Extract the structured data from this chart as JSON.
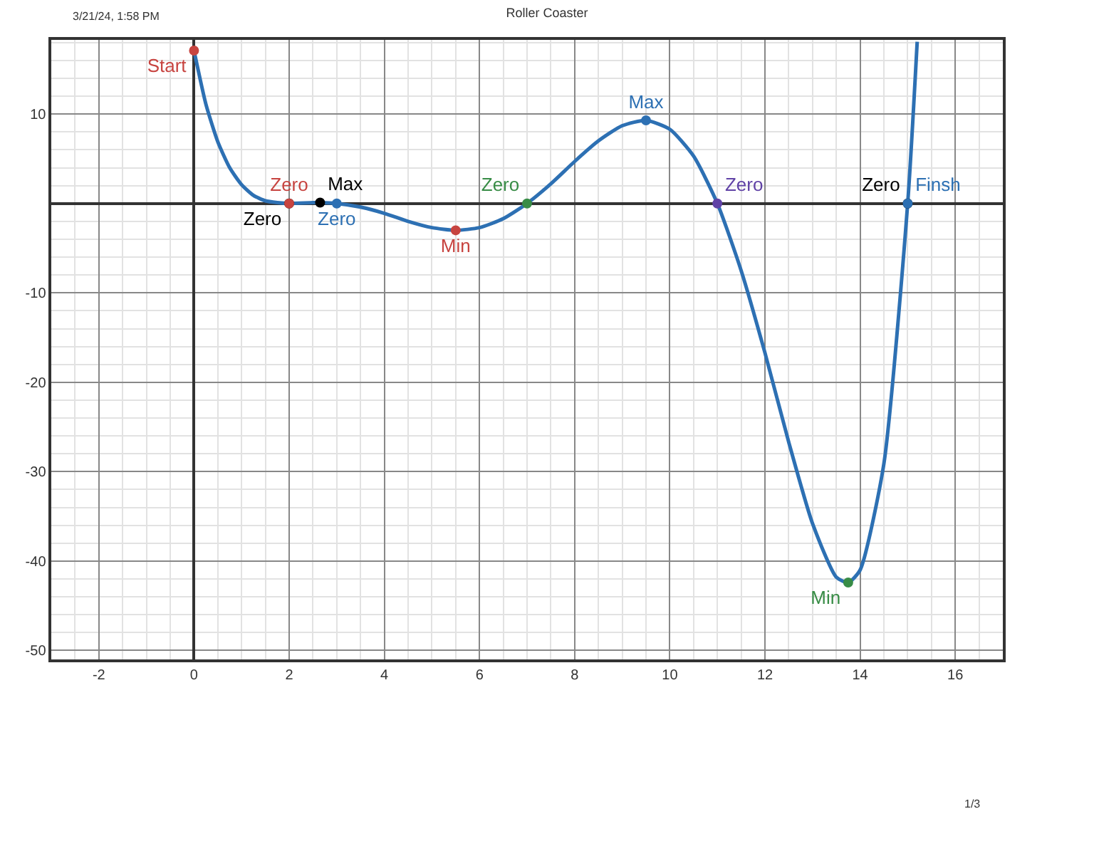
{
  "chart_data": {
    "type": "line",
    "title": "Roller Coaster",
    "annotations": [
      "3/21/24, 1:58 PM",
      "1/3"
    ],
    "xlim": [
      -3,
      17
    ],
    "ylim": [
      -51,
      18.3
    ],
    "xticks": [
      -2,
      0,
      2,
      4,
      6,
      8,
      10,
      12,
      14,
      16
    ],
    "yticks": [
      -50,
      -40,
      -30,
      -20,
      -10,
      10
    ],
    "grid": true,
    "legend": false,
    "marker": "circle",
    "series": [
      {
        "color": "#2d70b3",
        "line_style": "solid",
        "marker": "none",
        "x": [
          0,
          0.25,
          0.5,
          0.75,
          1,
          1.25,
          1.5,
          1.75,
          2,
          2.5,
          2.65,
          3,
          3.5,
          4,
          4.5,
          5,
          5.5,
          6,
          6.5,
          7,
          7.5,
          8,
          8.5,
          9,
          9.5,
          10,
          10.5,
          11,
          11.5,
          12,
          12.5,
          13,
          13.5,
          13.75,
          14,
          14.5,
          15,
          15.2
        ],
        "values": [
          17.1,
          11.1,
          6.9,
          4.0,
          2.1,
          0.9,
          0.3,
          0.1,
          0,
          0.1,
          0.1,
          0,
          -0.4,
          -1.1,
          -2.0,
          -2.7,
          -3.0,
          -2.7,
          -1.7,
          0,
          2.2,
          4.7,
          7.0,
          8.7,
          9.3,
          8.3,
          5.3,
          0,
          -7.5,
          -16.7,
          -26.7,
          -35.8,
          -41.8,
          -42.4,
          -41.0,
          -29.1,
          0,
          18.1
        ]
      },
      {
        "type": "scatter",
        "name": "Start",
        "color": "#c74440",
        "x": [
          0
        ],
        "values": [
          17.1
        ]
      },
      {
        "type": "scatter",
        "name": "Zero",
        "color": "#000000",
        "x": [
          2
        ],
        "values": [
          0
        ]
      },
      {
        "type": "scatter",
        "name": "Zero",
        "color": "#c74440",
        "x": [
          2
        ],
        "values": [
          0
        ]
      },
      {
        "type": "scatter",
        "name": "Max",
        "color": "#000000",
        "x": [
          2.65
        ],
        "values": [
          0.1
        ]
      },
      {
        "type": "scatter",
        "name": "Zero",
        "color": "#2d70b3",
        "x": [
          3
        ],
        "values": [
          0
        ]
      },
      {
        "type": "scatter",
        "name": "Min",
        "color": "#c74440",
        "x": [
          5.5
        ],
        "values": [
          -3.0
        ]
      },
      {
        "type": "scatter",
        "name": "Zero",
        "color": "#388c46",
        "x": [
          7
        ],
        "values": [
          0
        ]
      },
      {
        "type": "scatter",
        "name": "Max",
        "color": "#2d70b3",
        "x": [
          9.5
        ],
        "values": [
          9.3
        ]
      },
      {
        "type": "scatter",
        "name": "Zero",
        "color": "#6042a6",
        "x": [
          11
        ],
        "values": [
          0
        ]
      },
      {
        "type": "scatter",
        "name": "Min",
        "color": "#388c46",
        "x": [
          13.75
        ],
        "values": [
          -42.4
        ]
      },
      {
        "type": "scatter",
        "name": "Zero",
        "color": "#000000",
        "x": [
          15
        ],
        "values": [
          0
        ]
      },
      {
        "type": "scatter",
        "name": "Finsh",
        "color": "#2d70b3",
        "x": [
          15
        ],
        "values": [
          0
        ]
      }
    ]
  }
}
